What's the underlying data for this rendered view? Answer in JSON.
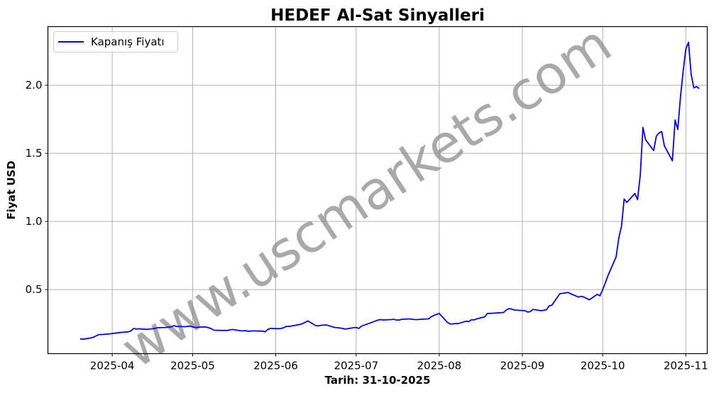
{
  "chart_data": {
    "type": "line",
    "title": "HEDEF Al-Sat Sinyalleri",
    "xlabel": "Tarih: 31-10-2025",
    "ylabel": "Fiyat USD",
    "x_ticks": [
      "2025-04",
      "2025-05",
      "2025-06",
      "2025-07",
      "2025-08",
      "2025-09",
      "2025-10",
      "2025-11"
    ],
    "y_ticks": [
      "0.5",
      "1.0",
      "1.5",
      "2.0"
    ],
    "y_tick_values": [
      0.5,
      1.0,
      1.5,
      2.0
    ],
    "xlim": [
      "2025-03-08",
      "2025-11-09"
    ],
    "ylim": [
      0.03,
      2.43
    ],
    "grid": true,
    "legend_position": "upper left",
    "watermark": "www.uscmarkets.com",
    "series": [
      {
        "name": "Kapanış Fiyatı",
        "color": "#0000ff",
        "points": [
          [
            "2025-03-20",
            0.14
          ],
          [
            "2025-03-21",
            0.135
          ],
          [
            "2025-03-24",
            0.145
          ],
          [
            "2025-03-25",
            0.15
          ],
          [
            "2025-03-26",
            0.16
          ],
          [
            "2025-03-27",
            0.17
          ],
          [
            "2025-03-28",
            0.17
          ],
          [
            "2025-03-31",
            0.175
          ],
          [
            "2025-04-01",
            0.177
          ],
          [
            "2025-04-02",
            0.18
          ],
          [
            "2025-04-03",
            0.182
          ],
          [
            "2025-04-04",
            0.185
          ],
          [
            "2025-04-07",
            0.19
          ],
          [
            "2025-04-08",
            0.197
          ],
          [
            "2025-04-09",
            0.215
          ],
          [
            "2025-04-10",
            0.21
          ],
          [
            "2025-04-11",
            0.212
          ],
          [
            "2025-04-14",
            0.208
          ],
          [
            "2025-04-15",
            0.21
          ],
          [
            "2025-04-16",
            0.212
          ],
          [
            "2025-04-17",
            0.216
          ],
          [
            "2025-04-18",
            0.22
          ],
          [
            "2025-04-21",
            0.222
          ],
          [
            "2025-04-22",
            0.225
          ],
          [
            "2025-04-23",
            0.226
          ],
          [
            "2025-04-24",
            0.235
          ],
          [
            "2025-04-25",
            0.23
          ],
          [
            "2025-04-28",
            0.228
          ],
          [
            "2025-04-29",
            0.23
          ],
          [
            "2025-04-30",
            0.232
          ],
          [
            "2025-05-01",
            0.226
          ],
          [
            "2025-05-02",
            0.222
          ],
          [
            "2025-05-05",
            0.226
          ],
          [
            "2025-05-06",
            0.225
          ],
          [
            "2025-05-07",
            0.22
          ],
          [
            "2025-05-08",
            0.212
          ],
          [
            "2025-05-09",
            0.202
          ],
          [
            "2025-05-12",
            0.2
          ],
          [
            "2025-05-13",
            0.2
          ],
          [
            "2025-05-14",
            0.2
          ],
          [
            "2025-05-15",
            0.205
          ],
          [
            "2025-05-16",
            0.207
          ],
          [
            "2025-05-19",
            0.197
          ],
          [
            "2025-05-20",
            0.197
          ],
          [
            "2025-05-21",
            0.198
          ],
          [
            "2025-05-22",
            0.193
          ],
          [
            "2025-05-23",
            0.197
          ],
          [
            "2025-05-27",
            0.195
          ],
          [
            "2025-05-28",
            0.19
          ],
          [
            "2025-05-29",
            0.207
          ],
          [
            "2025-05-30",
            0.215
          ],
          [
            "2025-06-02",
            0.213
          ],
          [
            "2025-06-03",
            0.215
          ],
          [
            "2025-06-04",
            0.22
          ],
          [
            "2025-06-05",
            0.23
          ],
          [
            "2025-06-06",
            0.23
          ],
          [
            "2025-06-09",
            0.24
          ],
          [
            "2025-06-10",
            0.245
          ],
          [
            "2025-06-11",
            0.25
          ],
          [
            "2025-06-12",
            0.26
          ],
          [
            "2025-06-13",
            0.27
          ],
          [
            "2025-06-16",
            0.235
          ],
          [
            "2025-06-17",
            0.234
          ],
          [
            "2025-06-18",
            0.238
          ],
          [
            "2025-06-20",
            0.24
          ],
          [
            "2025-06-23",
            0.222
          ],
          [
            "2025-06-24",
            0.22
          ],
          [
            "2025-06-25",
            0.218
          ],
          [
            "2025-06-26",
            0.215
          ],
          [
            "2025-06-27",
            0.21
          ],
          [
            "2025-06-30",
            0.22
          ],
          [
            "2025-07-01",
            0.222
          ],
          [
            "2025-07-02",
            0.215
          ],
          [
            "2025-07-03",
            0.232
          ],
          [
            "2025-07-07",
            0.26
          ],
          [
            "2025-07-08",
            0.268
          ],
          [
            "2025-07-09",
            0.275
          ],
          [
            "2025-07-10",
            0.28
          ],
          [
            "2025-07-11",
            0.277
          ],
          [
            "2025-07-14",
            0.28
          ],
          [
            "2025-07-15",
            0.282
          ],
          [
            "2025-07-16",
            0.277
          ],
          [
            "2025-07-17",
            0.276
          ],
          [
            "2025-07-18",
            0.282
          ],
          [
            "2025-07-21",
            0.285
          ],
          [
            "2025-07-22",
            0.282
          ],
          [
            "2025-07-23",
            0.28
          ],
          [
            "2025-07-24",
            0.28
          ],
          [
            "2025-07-25",
            0.282
          ],
          [
            "2025-07-28",
            0.285
          ],
          [
            "2025-07-29",
            0.3
          ],
          [
            "2025-07-30",
            0.31
          ],
          [
            "2025-07-31",
            0.318
          ],
          [
            "2025-08-01",
            0.325
          ],
          [
            "2025-08-04",
            0.26
          ],
          [
            "2025-08-05",
            0.248
          ],
          [
            "2025-08-06",
            0.248
          ],
          [
            "2025-08-07",
            0.25
          ],
          [
            "2025-08-08",
            0.25
          ],
          [
            "2025-08-11",
            0.268
          ],
          [
            "2025-08-12",
            0.265
          ],
          [
            "2025-08-13",
            0.278
          ],
          [
            "2025-08-14",
            0.278
          ],
          [
            "2025-08-15",
            0.285
          ],
          [
            "2025-08-18",
            0.3
          ],
          [
            "2025-08-19",
            0.325
          ],
          [
            "2025-08-20",
            0.325
          ],
          [
            "2025-08-21",
            0.327
          ],
          [
            "2025-08-22",
            0.328
          ],
          [
            "2025-08-25",
            0.332
          ],
          [
            "2025-08-26",
            0.35
          ],
          [
            "2025-08-27",
            0.36
          ],
          [
            "2025-08-28",
            0.357
          ],
          [
            "2025-08-29",
            0.35
          ],
          [
            "2025-09-02",
            0.345
          ],
          [
            "2025-09-03",
            0.335
          ],
          [
            "2025-09-04",
            0.338
          ],
          [
            "2025-09-05",
            0.355
          ],
          [
            "2025-09-08",
            0.345
          ],
          [
            "2025-09-09",
            0.348
          ],
          [
            "2025-09-10",
            0.352
          ],
          [
            "2025-09-11",
            0.38
          ],
          [
            "2025-09-12",
            0.385
          ],
          [
            "2025-09-15",
            0.47
          ],
          [
            "2025-09-17",
            0.475
          ],
          [
            "2025-09-18",
            0.48
          ],
          [
            "2025-09-19",
            0.47
          ],
          [
            "2025-09-22",
            0.445
          ],
          [
            "2025-09-23",
            0.45
          ],
          [
            "2025-09-24",
            0.445
          ],
          [
            "2025-09-25",
            0.435
          ],
          [
            "2025-09-26",
            0.425
          ],
          [
            "2025-09-29",
            0.465
          ],
          [
            "2025-09-30",
            0.455
          ],
          [
            "2025-10-01",
            0.5
          ],
          [
            "2025-10-02",
            0.55
          ],
          [
            "2025-10-03",
            0.605
          ],
          [
            "2025-10-06",
            0.74
          ],
          [
            "2025-10-07",
            0.88
          ],
          [
            "2025-10-08",
            0.965
          ],
          [
            "2025-10-09",
            1.165
          ],
          [
            "2025-10-10",
            1.14
          ],
          [
            "2025-10-13",
            1.205
          ],
          [
            "2025-10-14",
            1.16
          ],
          [
            "2025-10-15",
            1.34
          ],
          [
            "2025-10-16",
            1.69
          ],
          [
            "2025-10-17",
            1.6
          ],
          [
            "2025-10-20",
            1.52
          ],
          [
            "2025-10-21",
            1.625
          ],
          [
            "2025-10-22",
            1.65
          ],
          [
            "2025-10-23",
            1.66
          ],
          [
            "2025-10-24",
            1.555
          ],
          [
            "2025-10-27",
            1.445
          ],
          [
            "2025-10-28",
            1.745
          ],
          [
            "2025-10-29",
            1.675
          ],
          [
            "2025-10-30",
            1.91
          ],
          [
            "2025-10-31",
            2.1
          ],
          [
            "2025-11-01",
            2.265
          ],
          [
            "2025-11-02",
            2.315
          ],
          [
            "2025-11-03",
            2.08
          ],
          [
            "2025-11-04",
            1.98
          ],
          [
            "2025-11-05",
            1.99
          ],
          [
            "2025-11-06",
            1.975
          ]
        ]
      }
    ]
  },
  "legend": {
    "entry_label": "Kapanış Fiyatı"
  },
  "colors": {
    "line": "#0000ff",
    "grid": "#b0b0b0",
    "axis": "#000000",
    "watermark": "#8c8c8c"
  }
}
